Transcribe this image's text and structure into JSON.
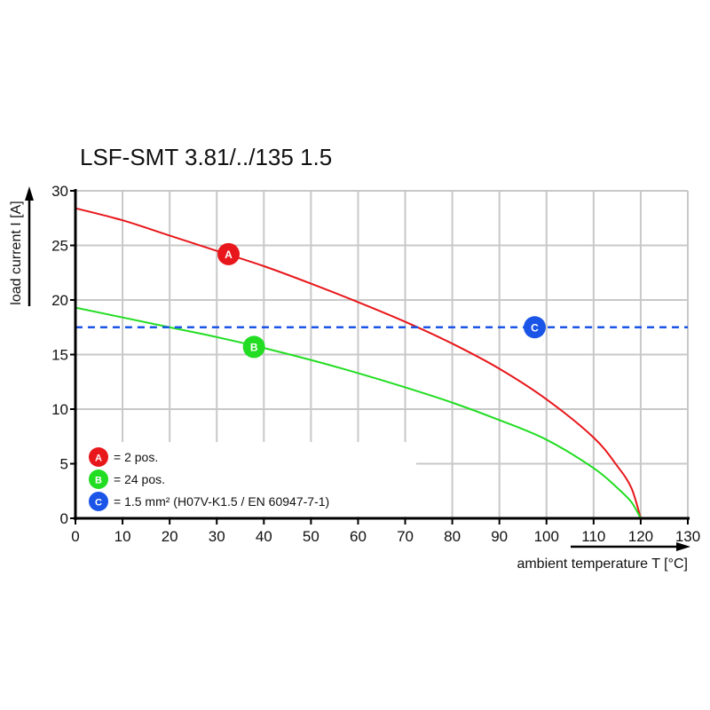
{
  "chart_data": {
    "type": "line",
    "title": "LSF-SMT 3.81/../135 1.5",
    "xlabel": "ambient temperature T [°C]",
    "ylabel": "load current I [A]",
    "xlim": [
      0,
      130
    ],
    "ylim": [
      0,
      30
    ],
    "xticks": [
      0,
      10,
      20,
      30,
      40,
      50,
      60,
      70,
      80,
      90,
      100,
      110,
      120,
      130
    ],
    "yticks": [
      0,
      5,
      10,
      15,
      20,
      25,
      30
    ],
    "grid": true,
    "legend_placement": "bottom-left",
    "series": [
      {
        "marker": "A",
        "name": "= 2 pos.",
        "color": "#e8171b",
        "x": [
          0,
          10,
          20,
          30,
          40,
          50,
          60,
          70,
          80,
          90,
          100,
          110,
          115,
          118,
          120
        ],
        "y": [
          28.4,
          27.3,
          25.9,
          24.5,
          23.1,
          21.5,
          19.8,
          18.0,
          16.0,
          13.7,
          10.9,
          7.4,
          4.8,
          2.8,
          0
        ],
        "marker_at": [
          32.5,
          24.2
        ]
      },
      {
        "marker": "B",
        "name": "= 24 pos.",
        "color": "#22dd22",
        "x": [
          0,
          10,
          20,
          30,
          40,
          50,
          60,
          70,
          80,
          90,
          100,
          110,
          115,
          118,
          120
        ],
        "y": [
          19.3,
          18.4,
          17.5,
          16.6,
          15.6,
          14.5,
          13.3,
          12.0,
          10.6,
          9.0,
          7.2,
          4.6,
          2.8,
          1.5,
          0
        ],
        "marker_at": [
          37.9,
          15.7
        ]
      },
      {
        "marker": "C",
        "name": "= 1.5 mm² (H07V-K1.5 / EN 60947-7-1)",
        "color": "#1a55e8",
        "style": "dashed",
        "x": [
          0,
          130
        ],
        "y": [
          17.5,
          17.5
        ],
        "marker_at": [
          97.5,
          17.5
        ]
      }
    ]
  }
}
